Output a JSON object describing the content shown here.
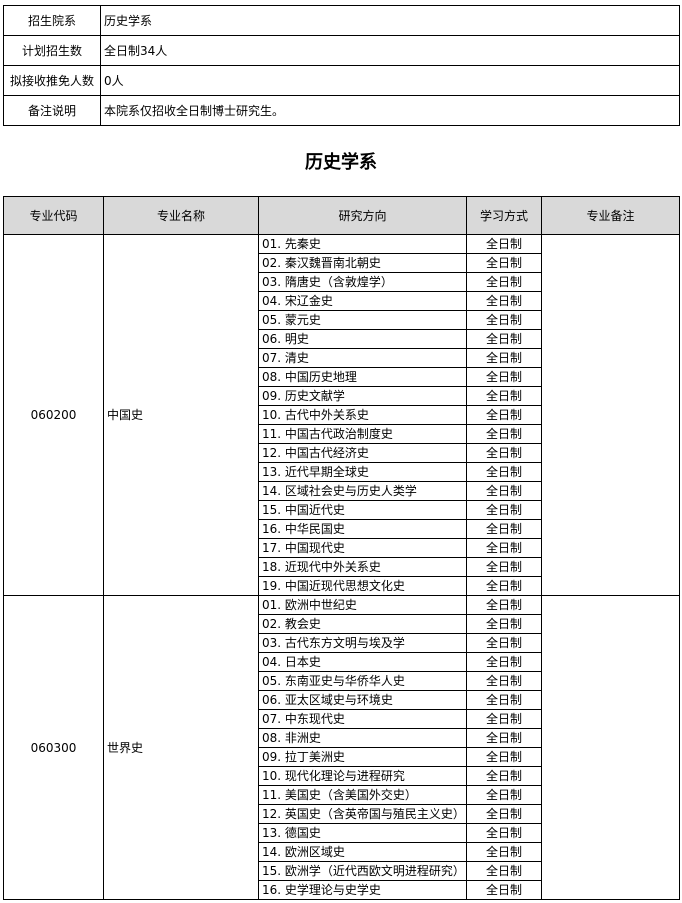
{
  "info": [
    {
      "label": "招生院系",
      "value": "历史学系"
    },
    {
      "label": "计划招生数",
      "value": "全日制34人"
    },
    {
      "label": "拟接收推免人数",
      "value": "0人"
    },
    {
      "label": "备注说明",
      "value": "本院系仅招收全日制博士研究生。"
    }
  ],
  "title": "历史学系",
  "table": {
    "headers": [
      "专业代码",
      "专业名称",
      "研究方向",
      "学习方式",
      "专业备注"
    ],
    "groups": [
      {
        "code": "060200",
        "name": "中国史",
        "rows": [
          {
            "direction": "01. 先秦史",
            "mode": "全日制"
          },
          {
            "direction": "02. 秦汉魏晋南北朝史",
            "mode": "全日制"
          },
          {
            "direction": "03. 隋唐史（含敦煌学）",
            "mode": "全日制"
          },
          {
            "direction": "04. 宋辽金史",
            "mode": "全日制"
          },
          {
            "direction": "05. 蒙元史",
            "mode": "全日制"
          },
          {
            "direction": "06. 明史",
            "mode": "全日制"
          },
          {
            "direction": "07. 清史",
            "mode": "全日制"
          },
          {
            "direction": "08. 中国历史地理",
            "mode": "全日制"
          },
          {
            "direction": "09. 历史文献学",
            "mode": "全日制"
          },
          {
            "direction": "10. 古代中外关系史",
            "mode": "全日制"
          },
          {
            "direction": "11. 中国古代政治制度史",
            "mode": "全日制"
          },
          {
            "direction": "12. 中国古代经济史",
            "mode": "全日制"
          },
          {
            "direction": "13. 近代早期全球史",
            "mode": "全日制"
          },
          {
            "direction": "14. 区域社会史与历史人类学",
            "mode": "全日制"
          },
          {
            "direction": "15. 中国近代史",
            "mode": "全日制"
          },
          {
            "direction": "16. 中华民国史",
            "mode": "全日制"
          },
          {
            "direction": "17. 中国现代史",
            "mode": "全日制"
          },
          {
            "direction": "18. 近现代中外关系史",
            "mode": "全日制"
          },
          {
            "direction": "19. 中国近现代思想文化史",
            "mode": "全日制"
          }
        ]
      },
      {
        "code": "060300",
        "name": "世界史",
        "rows": [
          {
            "direction": "01. 欧洲中世纪史",
            "mode": "全日制"
          },
          {
            "direction": "02. 教会史",
            "mode": "全日制"
          },
          {
            "direction": "03. 古代东方文明与埃及学",
            "mode": "全日制"
          },
          {
            "direction": "04. 日本史",
            "mode": "全日制"
          },
          {
            "direction": "05. 东南亚史与华侨华人史",
            "mode": "全日制"
          },
          {
            "direction": "06. 亚太区域史与环境史",
            "mode": "全日制"
          },
          {
            "direction": "07. 中东现代史",
            "mode": "全日制"
          },
          {
            "direction": "08. 非洲史",
            "mode": "全日制"
          },
          {
            "direction": "09. 拉丁美洲史",
            "mode": "全日制"
          },
          {
            "direction": "10. 现代化理论与进程研究",
            "mode": "全日制"
          },
          {
            "direction": "11. 美国史（含美国外交史）",
            "mode": "全日制"
          },
          {
            "direction": "12. 英国史（含英帝国与殖民主义史）",
            "mode": "全日制"
          },
          {
            "direction": "13. 德国史",
            "mode": "全日制"
          },
          {
            "direction": "14. 欧洲区域史",
            "mode": "全日制"
          },
          {
            "direction": "15. 欧洲学（近代西欧文明进程研究）",
            "mode": "全日制"
          },
          {
            "direction": "16. 史学理论与史学史",
            "mode": "全日制"
          }
        ]
      }
    ]
  }
}
